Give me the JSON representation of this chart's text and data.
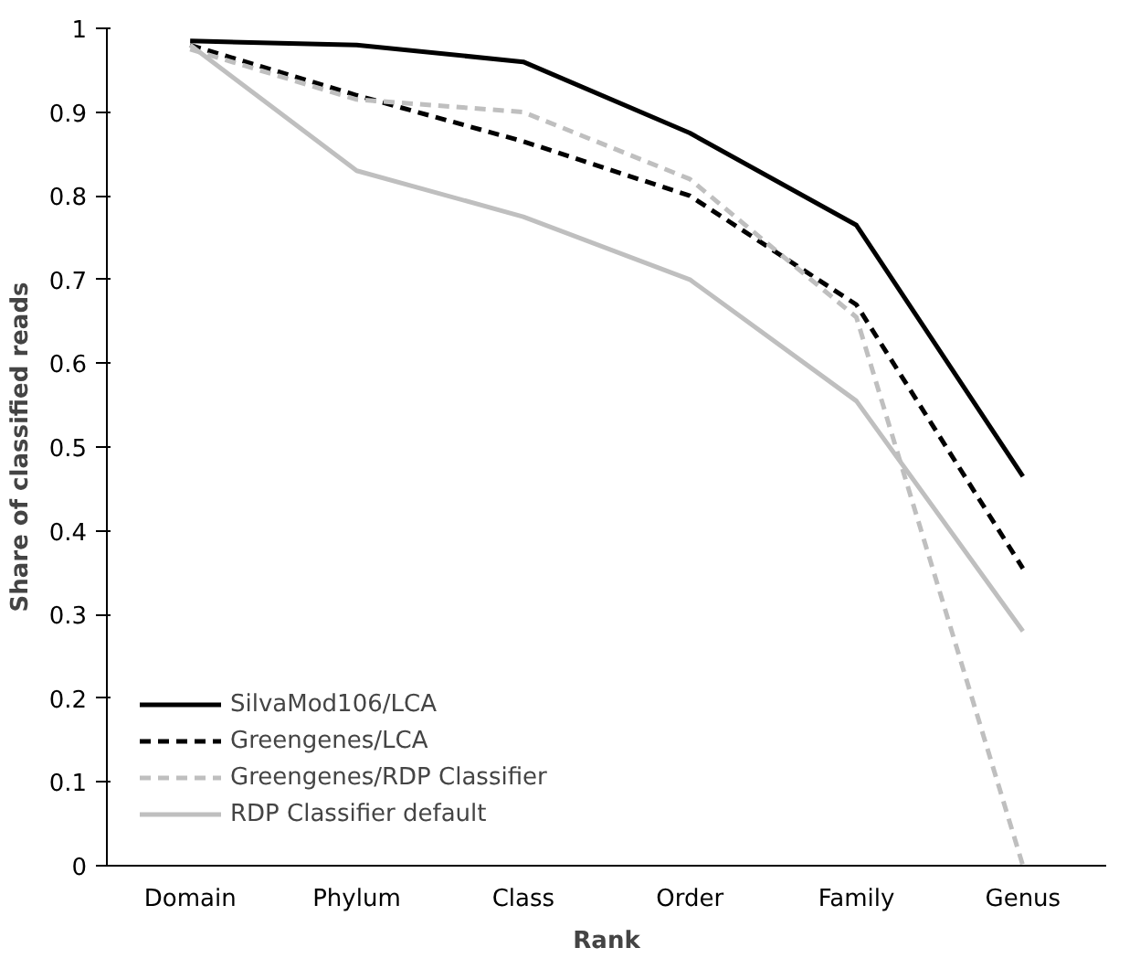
{
  "chart_data": {
    "type": "line",
    "xlabel": "Rank",
    "ylabel": "Share of classified reads",
    "categories": [
      "Domain",
      "Phylum",
      "Class",
      "Order",
      "Family",
      "Genus"
    ],
    "series": [
      {
        "name": "SilvaMod106/LCA",
        "color": "#000000",
        "line_style": "solid",
        "values": [
          0.985,
          0.98,
          0.96,
          0.875,
          0.765,
          0.465
        ]
      },
      {
        "name": "Greengenes/LCA",
        "color": "#000000",
        "line_style": "dashed",
        "values": [
          0.98,
          0.92,
          0.865,
          0.8,
          0.67,
          0.355
        ]
      },
      {
        "name": "Greengenes/RDP Classifier",
        "color": "#bfbfbf",
        "line_style": "dashed",
        "values": [
          0.975,
          0.915,
          0.9,
          0.82,
          0.655,
          0.0
        ]
      },
      {
        "name": "RDP Classifier default",
        "color": "#bfbfbf",
        "line_style": "solid",
        "values": [
          0.98,
          0.83,
          0.775,
          0.7,
          0.555,
          0.28
        ]
      }
    ],
    "ylim": [
      0,
      1
    ],
    "yticks": [
      0,
      0.1,
      0.2,
      0.3,
      0.4,
      0.5,
      0.6,
      0.7,
      0.8,
      0.9,
      1
    ],
    "grid": false,
    "legend": "bottom left",
    "marker": "none"
  }
}
